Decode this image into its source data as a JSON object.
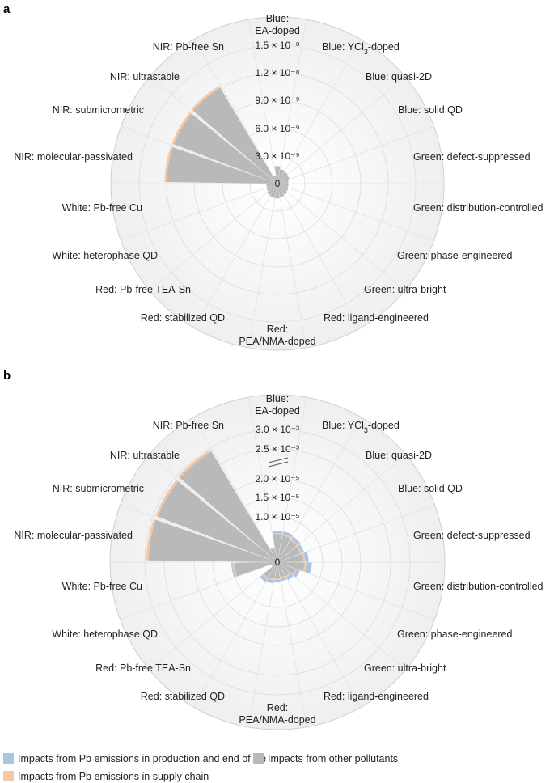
{
  "chart_data": [
    {
      "panel_label": "a",
      "type": "radial-bar",
      "categories": [
        "Blue: EA-doped",
        "Blue: YCl3-doped",
        "Blue: quasi-2D",
        "Blue: solid QD",
        "Green: defect-suppressed",
        "Green: distribution-controlled",
        "Green: phase-engineered",
        "Green: ultra-bright",
        "Red: ligand-engineered",
        "Red: PEA/NMA-doped",
        "Red: stabilized QD",
        "Red: Pb-free TEA-Sn",
        "White: heterophase QD",
        "White: Pb-free Cu",
        "NIR: molecular-passivated",
        "NIR: submicrometric",
        "NIR: ultrastable",
        "NIR: Pb-free Sn"
      ],
      "radial_ticks": [
        0,
        3e-09,
        6e-09,
        9e-09,
        1.2e-08,
        1.5e-08
      ],
      "radial_tick_labels": [
        "0",
        "3.0 × 10⁻⁹",
        "6.0 × 10⁻⁹",
        "9.0 × 10⁻⁹",
        "1.2 × 10⁻⁸",
        "1.5 × 10⁻⁸"
      ],
      "rmax": 1.5e-08,
      "series": [
        {
          "name": "Impacts from other pollutants",
          "values": [
            1.9e-09,
            1.6e-09,
            1.5e-09,
            1.4e-09,
            1.2e-09,
            1.2e-09,
            1.3e-09,
            1.4e-09,
            1.5e-09,
            1.6e-09,
            1.6e-09,
            1.5e-09,
            1.3e-09,
            1.2e-09,
            1.2e-08,
            1.2e-08,
            1.21e-08,
            9e-10
          ]
        },
        {
          "name": "Impacts from Pb emissions in supply chain",
          "values": [
            0,
            0,
            0,
            0,
            0,
            0,
            0,
            0,
            0,
            0,
            0,
            0,
            0,
            0,
            2.5e-10,
            2.5e-10,
            2.5e-10,
            0
          ]
        },
        {
          "name": "Impacts from Pb emissions in production and end of life",
          "values": [
            0,
            0,
            0,
            0,
            0,
            0,
            0,
            0,
            0,
            0,
            0,
            0,
            0,
            0,
            0,
            0,
            0,
            0
          ]
        }
      ]
    },
    {
      "panel_label": "b",
      "type": "radial-bar",
      "broken_axis": true,
      "categories": [
        "Blue: EA-doped",
        "Blue: YCl3-doped",
        "Blue: quasi-2D",
        "Blue: solid QD",
        "Green: defect-suppressed",
        "Green: distribution-controlled",
        "Green: phase-engineered",
        "Green: ultra-bright",
        "Red: ligand-engineered",
        "Red: PEA/NMA-doped",
        "Red: stabilized QD",
        "Red: Pb-free TEA-Sn",
        "White: heterophase QD",
        "White: Pb-free Cu",
        "NIR: molecular-passivated",
        "NIR: submicrometric",
        "NIR: ultrastable",
        "NIR: Pb-free Sn"
      ],
      "radial_tick_labels": [
        "0",
        "1.0 × 10⁻⁵",
        "1.5 × 10⁻⁵",
        "2.0 × 10⁻⁵",
        "2.5 × 10⁻³",
        "3.0 × 10⁻³"
      ],
      "series": [
        {
          "name": "Impacts from other pollutants",
          "values": [
            6.2e-06,
            6e-06,
            5.6e-06,
            5.4e-06,
            5.8e-06,
            6e-06,
            4.2e-06,
            3.6e-06,
            3.4e-06,
            3.6e-06,
            3.8e-06,
            4e-06,
            1.2e-06,
            9.5e-06,
            0.0029,
            0.00288,
            0.0029,
            3e-06
          ]
        },
        {
          "name": "Impacts from Pb emissions in supply chain",
          "values": [
            2e-07,
            3e-07,
            3e-07,
            3e-07,
            3e-07,
            4e-07,
            3e-07,
            3e-07,
            3e-07,
            3e-07,
            3e-07,
            3e-07,
            1e-07,
            4e-07,
            6e-05,
            6e-05,
            6e-05,
            1e-07
          ]
        },
        {
          "name": "Impacts from Pb emissions in production and end of life",
          "values": [
            4e-07,
            6e-07,
            7e-07,
            6e-07,
            8e-07,
            1.2e-06,
            8e-07,
            7e-07,
            6e-07,
            6e-07,
            7e-07,
            8e-07,
            2e-07,
            3e-07,
            5e-06,
            5e-06,
            5e-06,
            2e-07
          ]
        }
      ]
    }
  ],
  "panels": {
    "a": {
      "categories": [
        {
          "main": "Blue:",
          "second": "EA-doped"
        },
        {
          "main": "Blue: YCl",
          "sub": "3",
          "post": "-doped"
        },
        {
          "main": "Blue: quasi-2D"
        },
        {
          "main": "Blue: solid QD"
        },
        {
          "main": "Green: defect-suppressed"
        },
        {
          "main": "Green: distribution-controlled"
        },
        {
          "main": "Green: phase-engineered"
        },
        {
          "main": "Green: ultra-bright"
        },
        {
          "main": "Red: ligand-engineered"
        },
        {
          "main": "Red:",
          "second": "PEA/NMA-doped"
        },
        {
          "main": "Red: stabilized QD"
        },
        {
          "main": "Red: Pb-free TEA-Sn"
        },
        {
          "main": "White: heterophase QD"
        },
        {
          "main": "White: Pb-free Cu"
        },
        {
          "main": "NIR: molecular-passivated"
        },
        {
          "main": "NIR: submicrometric"
        },
        {
          "main": "NIR: ultrastable"
        },
        {
          "main": "NIR: Pb-free Sn"
        }
      ],
      "ticks": [
        "0",
        "3.0 × 10⁻⁹",
        "6.0 × 10⁻⁹",
        "9.0 × 10⁻⁹",
        "1.2 × 10⁻⁸",
        "1.5 × 10⁻⁸"
      ]
    },
    "b": {
      "ticks": [
        "0",
        "1.0 × 10⁻⁵",
        "1.5 × 10⁻⁵",
        "2.0 × 10⁻⁵",
        "2.5 × 10⁻³",
        "3.0 × 10⁻³"
      ]
    }
  },
  "legend": [
    {
      "label": "Impacts from Pb emissions in production and end of life",
      "color": "#a8c6e4"
    },
    {
      "label": "Impacts from other pollutants",
      "color": "#b9b9b9"
    },
    {
      "label": "Impacts from Pb emissions in supply chain",
      "color": "#f5c7a5"
    }
  ],
  "colors": {
    "other": "#b9b9b9",
    "supply_chain": "#f5c7a5",
    "production": "#a8c6e4",
    "background": "#f2f2f2",
    "grid": "#dcdcdc"
  }
}
